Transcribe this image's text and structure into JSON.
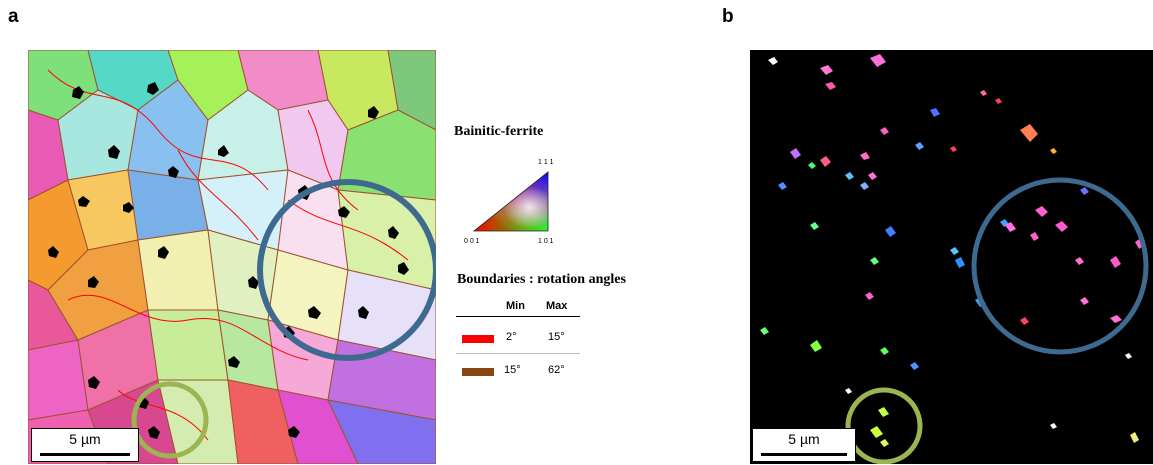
{
  "panels": {
    "a": {
      "letter": "a",
      "scale_label": "5 µm"
    },
    "b": {
      "letter": "b",
      "scale_label": "5 µm"
    }
  },
  "ipf_key": {
    "title": "Bainitic-ferrite",
    "corner_111": "1 1 1",
    "corner_001": "0 0 1",
    "corner_101": "1 0 1"
  },
  "boundaries": {
    "title": "Boundaries : rotation angles",
    "col_min": "Min",
    "col_max": "Max",
    "rows": [
      {
        "min": "2°",
        "max": "15°",
        "color": "#ff0000"
      },
      {
        "min": "15°",
        "max": "62°",
        "color": "#8b4513"
      }
    ]
  },
  "colors": {
    "highlight_blue": "#3f6a8f",
    "highlight_green": "#9bb550",
    "low_angle_boundary": "#ff0000",
    "high_angle_boundary": "#8b4513"
  }
}
